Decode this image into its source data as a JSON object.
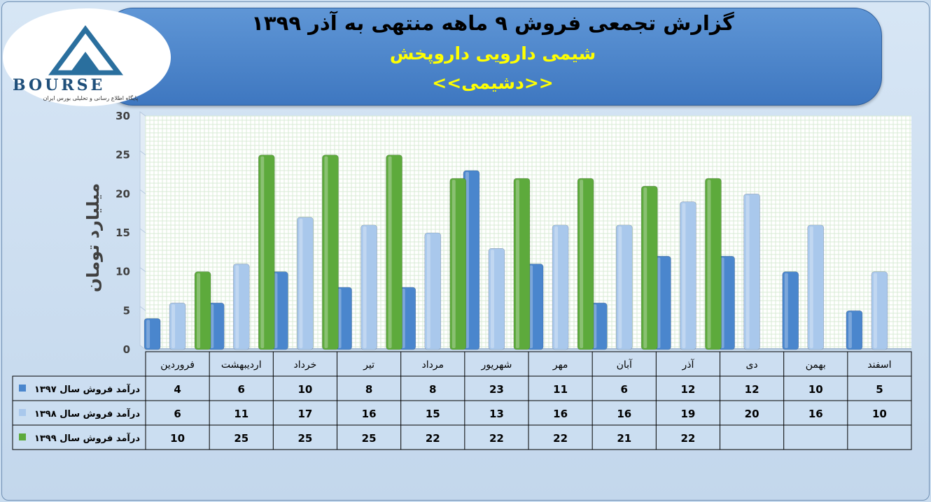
{
  "header": {
    "title": "گزارش تجمعی فروش ۹ ماهه منتهی به آذر ۱۳۹۹",
    "company": "شیمی دارویی داروپخش",
    "symbol": "<<دشیمی>>"
  },
  "logo": {
    "text": "BOURSE",
    "subtitle": "پایگاه اطلاع رسانی و تحلیلی بورس ایران"
  },
  "colors": {
    "series_1397": "#4a86cd",
    "series_1398": "#a9c8ec",
    "series_1399": "#5daa3c"
  },
  "chart_data": {
    "type": "bar",
    "ylabel": "میلیارد تومان",
    "ylim": [
      0,
      30
    ],
    "yticks": [
      0,
      5,
      10,
      15,
      20,
      25,
      30
    ],
    "grid": true,
    "categories": [
      "فروردین",
      "اردیبهشت",
      "خرداد",
      "تیر",
      "مرداد",
      "شهریور",
      "مهر",
      "آبان",
      "آذر",
      "دی",
      "بهمن",
      "اسفند"
    ],
    "series": [
      {
        "name": "درآمد فروش سال ۱۳۹۷",
        "values": [
          4,
          6,
          10,
          8,
          8,
          23,
          11,
          6,
          12,
          12,
          10,
          5
        ]
      },
      {
        "name": "درآمد فروش سال ۱۳۹۸",
        "values": [
          6,
          11,
          17,
          16,
          15,
          13,
          16,
          16,
          19,
          20,
          16,
          10
        ]
      },
      {
        "name": "درآمد فروش سال ۱۳۹۹",
        "values": [
          10,
          25,
          25,
          25,
          22,
          22,
          22,
          21,
          22,
          null,
          null,
          null
        ]
      }
    ]
  }
}
